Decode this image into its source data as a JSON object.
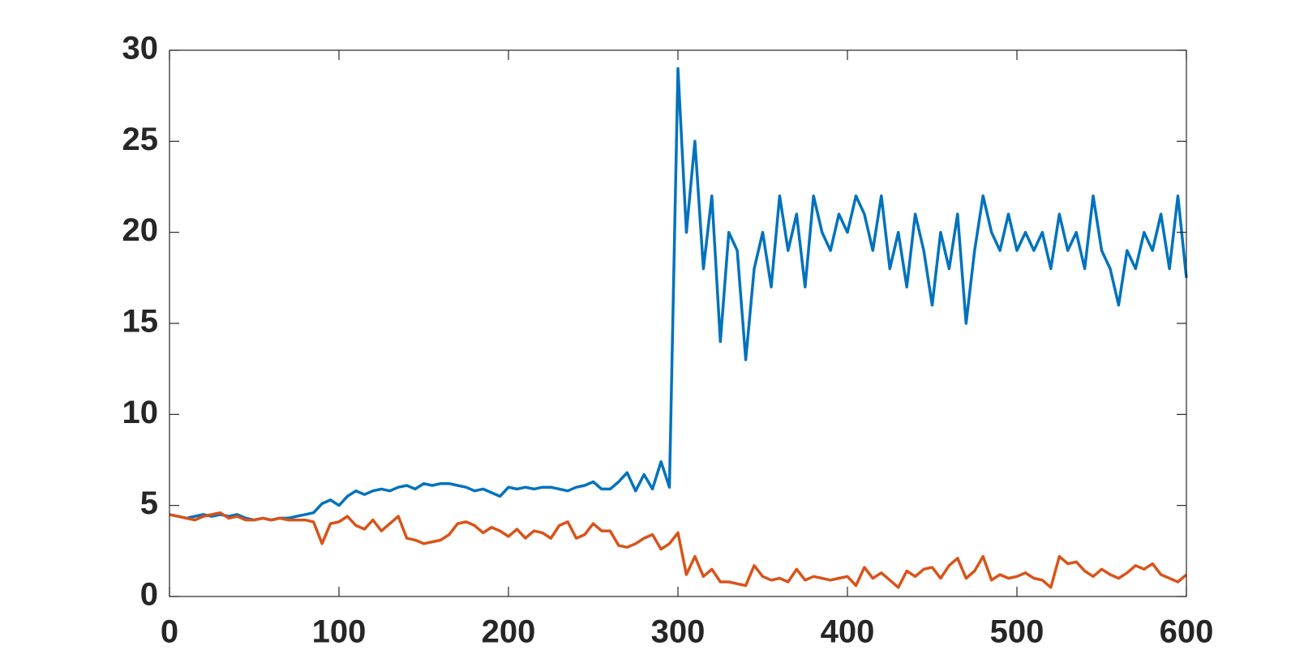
{
  "chart_data": {
    "type": "line",
    "x": [
      0,
      5,
      10,
      15,
      20,
      25,
      30,
      35,
      40,
      45,
      50,
      55,
      60,
      65,
      70,
      75,
      80,
      85,
      90,
      95,
      100,
      105,
      110,
      115,
      120,
      125,
      130,
      135,
      140,
      145,
      150,
      155,
      160,
      165,
      170,
      175,
      180,
      185,
      190,
      195,
      200,
      205,
      210,
      215,
      220,
      225,
      230,
      235,
      240,
      245,
      250,
      255,
      260,
      265,
      270,
      275,
      280,
      285,
      290,
      295,
      300,
      305,
      310,
      315,
      320,
      325,
      330,
      335,
      340,
      345,
      350,
      355,
      360,
      365,
      370,
      375,
      380,
      385,
      390,
      395,
      400,
      405,
      410,
      415,
      420,
      425,
      430,
      435,
      440,
      445,
      450,
      455,
      460,
      465,
      470,
      475,
      480,
      485,
      490,
      495,
      500,
      505,
      510,
      515,
      520,
      525,
      530,
      535,
      540,
      545,
      550,
      555,
      560,
      565,
      570,
      575,
      580,
      585,
      590,
      595,
      600
    ],
    "series": [
      {
        "color": "#0072BD",
        "values": [
          4.5,
          4.4,
          4.3,
          4.4,
          4.5,
          4.4,
          4.5,
          4.4,
          4.5,
          4.3,
          4.2,
          4.3,
          4.2,
          4.3,
          4.3,
          4.4,
          4.5,
          4.6,
          5.1,
          5.3,
          5.0,
          5.5,
          5.8,
          5.6,
          5.8,
          5.9,
          5.8,
          6.0,
          6.1,
          5.9,
          6.2,
          6.1,
          6.2,
          6.2,
          6.1,
          6.0,
          5.8,
          5.9,
          5.7,
          5.5,
          6.0,
          5.9,
          6.0,
          5.9,
          6.0,
          6.0,
          5.9,
          5.8,
          6.0,
          6.1,
          6.3,
          5.9,
          5.9,
          6.3,
          6.8,
          5.8,
          6.7,
          5.9,
          7.4,
          6.0,
          29,
          20,
          25,
          18,
          22,
          14,
          20,
          19,
          13,
          18,
          20,
          17,
          22,
          19,
          21,
          17,
          22,
          20,
          19,
          21,
          20,
          22,
          21,
          19,
          22,
          18,
          20,
          17,
          21,
          19,
          16,
          20,
          18,
          21,
          15,
          19,
          22,
          20,
          19,
          21,
          19,
          20,
          19,
          20,
          18,
          21,
          19,
          20,
          18,
          22,
          19,
          18,
          16,
          19,
          18,
          20,
          19,
          21,
          18,
          22,
          17.5
        ]
      },
      {
        "color": "#D95319",
        "values": [
          4.5,
          4.4,
          4.3,
          4.2,
          4.4,
          4.5,
          4.6,
          4.3,
          4.4,
          4.2,
          4.2,
          4.3,
          4.2,
          4.3,
          4.2,
          4.2,
          4.2,
          4.1,
          2.9,
          4.0,
          4.1,
          4.4,
          3.9,
          3.7,
          4.2,
          3.6,
          4.0,
          4.4,
          3.2,
          3.1,
          2.9,
          3.0,
          3.1,
          3.4,
          4.0,
          4.1,
          3.9,
          3.5,
          3.8,
          3.6,
          3.3,
          3.7,
          3.2,
          3.6,
          3.5,
          3.2,
          3.9,
          4.1,
          3.2,
          3.4,
          4.0,
          3.6,
          3.6,
          2.8,
          2.7,
          2.9,
          3.2,
          3.4,
          2.6,
          2.9,
          3.5,
          1.2,
          2.2,
          1.1,
          1.5,
          0.8,
          0.8,
          0.7,
          0.6,
          1.7,
          1.1,
          0.9,
          1.0,
          0.8,
          1.5,
          0.9,
          1.1,
          1.0,
          0.9,
          1.0,
          1.1,
          0.6,
          1.6,
          1.0,
          1.3,
          0.9,
          0.5,
          1.4,
          1.1,
          1.5,
          1.6,
          1.0,
          1.7,
          2.1,
          1.0,
          1.4,
          2.2,
          0.9,
          1.2,
          1.0,
          1.1,
          1.3,
          1.0,
          0.9,
          0.5,
          2.2,
          1.8,
          1.9,
          1.4,
          1.1,
          1.5,
          1.2,
          1.0,
          1.3,
          1.7,
          1.5,
          1.8,
          1.2,
          1.0,
          0.8,
          1.2
        ]
      }
    ],
    "xlim": [
      0,
      600
    ],
    "xticks": [
      0,
      100,
      200,
      300,
      400,
      500,
      600
    ],
    "ylim": [
      0,
      30
    ],
    "yticks": [
      0,
      5,
      10,
      15,
      20,
      25,
      30
    ]
  }
}
